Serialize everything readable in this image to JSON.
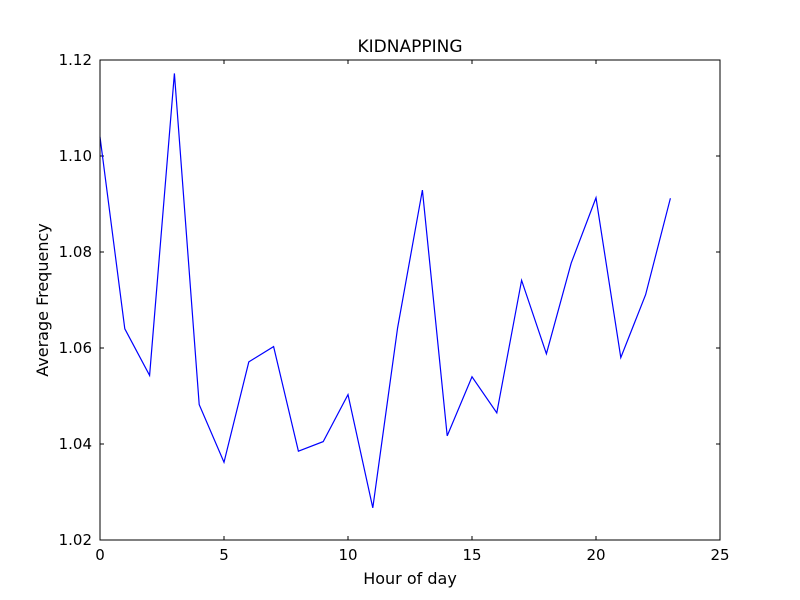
{
  "chart_data": {
    "type": "line",
    "title": "KIDNAPPING",
    "xlabel": "Hour of day",
    "ylabel": "Average Frequency",
    "xlim": [
      0,
      25
    ],
    "ylim": [
      1.02,
      1.12
    ],
    "xticks": [
      0,
      5,
      10,
      15,
      20,
      25
    ],
    "xtick_labels": [
      "0",
      "5",
      "10",
      "15",
      "20",
      "25"
    ],
    "yticks": [
      1.02,
      1.04,
      1.06,
      1.08,
      1.1,
      1.12
    ],
    "ytick_labels": [
      "1.02",
      "1.04",
      "1.06",
      "1.08",
      "1.10",
      "1.12"
    ],
    "grid": false,
    "line_color": "#0000ff",
    "series": [
      {
        "x": [
          0,
          1,
          2,
          3,
          4,
          5,
          6,
          7,
          8,
          9,
          10,
          11,
          12,
          13,
          14,
          15,
          16,
          17,
          18,
          19,
          20,
          21,
          22,
          23
        ],
        "values": [
          1.104,
          1.064,
          1.0543,
          1.1172,
          1.0482,
          1.0362,
          1.0571,
          1.0603,
          1.0385,
          1.0405,
          1.0503,
          1.0267,
          1.0642,
          1.0929,
          1.0417,
          1.054,
          1.0465,
          1.0741,
          1.0588,
          1.0777,
          1.0913,
          1.058,
          1.0711,
          1.0912
        ]
      }
    ]
  }
}
